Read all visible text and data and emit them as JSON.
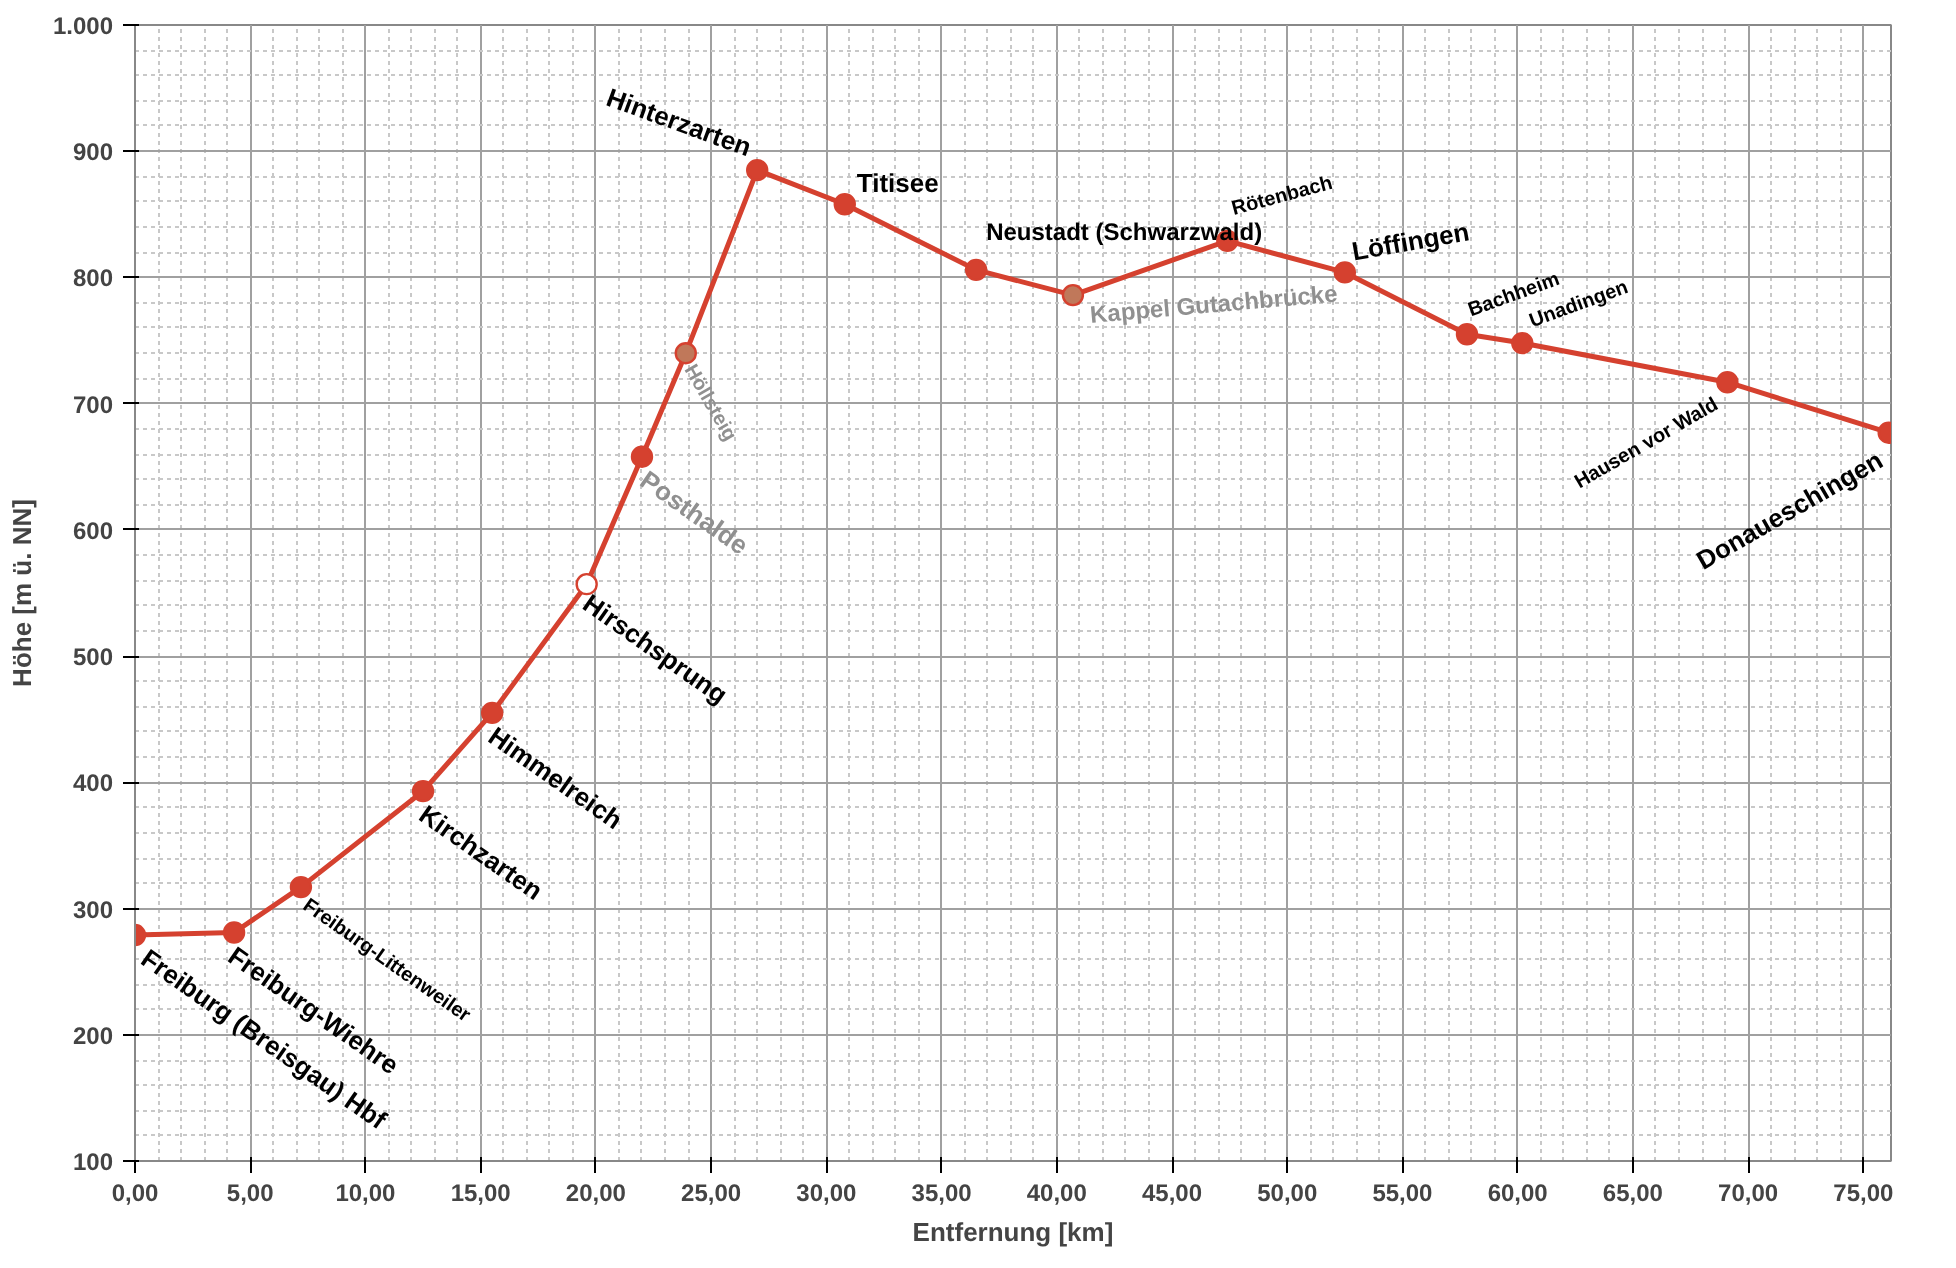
{
  "chart_data": {
    "type": "line",
    "xlabel": "Entfernung [km]",
    "ylabel": "Höhe [m ü. NN]",
    "x": [
      0.0,
      4.3,
      7.2,
      12.5,
      15.5,
      19.6,
      22.0,
      23.9,
      27.0,
      30.8,
      36.5,
      40.7,
      47.4,
      52.5,
      57.8,
      60.2,
      69.1,
      76.1
    ],
    "series": [
      {
        "color": "#d5412f",
        "values": [
          279,
          281,
          317,
          393,
          455,
          557,
          658,
          740,
          885,
          858,
          806,
          786,
          829,
          804,
          755,
          748,
          717,
          677
        ],
        "colors": [
          "#d5412f",
          "#d5412f",
          "#d5412f",
          "#d5412f",
          "#d5412f",
          "#ffffff",
          "#d5412f",
          "#c0785a",
          "#d5412f",
          "#d5412f",
          "#d5412f",
          "#c0785a",
          "#d5412f",
          "#d5412f",
          "#d5412f",
          "#d5412f",
          "#d5412f",
          "#d5412f"
        ]
      }
    ],
    "xlim": [
      0,
      76.2
    ],
    "ylim": [
      100,
      1000
    ],
    "xticks": [
      {
        "value": 0,
        "label": "0,00"
      },
      {
        "value": 5,
        "label": "5,00"
      },
      {
        "value": 10,
        "label": "10,00"
      },
      {
        "value": 15,
        "label": "15,00"
      },
      {
        "value": 20,
        "label": "20,00"
      },
      {
        "value": 25,
        "label": "25,00"
      },
      {
        "value": 30,
        "label": "30,00"
      },
      {
        "value": 35,
        "label": "35,00"
      },
      {
        "value": 40,
        "label": "40,00"
      },
      {
        "value": 45,
        "label": "45,00"
      },
      {
        "value": 50,
        "label": "50,00"
      },
      {
        "value": 55,
        "label": "55,00"
      },
      {
        "value": 60,
        "label": "60,00"
      },
      {
        "value": 65,
        "label": "65,00"
      },
      {
        "value": 70,
        "label": "70,00"
      },
      {
        "value": 75,
        "label": "75,00"
      }
    ],
    "yticks": [
      100,
      200,
      300,
      400,
      500,
      600,
      700,
      800,
      900,
      {
        "value": 1000,
        "label": "1.000"
      }
    ],
    "grid": true,
    "marker": "circle",
    "line_style": "solid",
    "annotations": [
      {
        "text": "Freiburg (Breisgau) Hbf",
        "x": 0.0,
        "y": 279
      },
      {
        "text": "Freiburg-Wiehre",
        "x": 4.3,
        "y": 281
      },
      {
        "text": "Freiburg-Littenweiler",
        "x": 7.2,
        "y": 317
      },
      {
        "text": "Kirchzarten",
        "x": 12.5,
        "y": 393
      },
      {
        "text": "Himmelreich",
        "x": 15.5,
        "y": 455
      },
      {
        "text": "Hirschsprung",
        "x": 19.6,
        "y": 557
      },
      {
        "text": "Posthalde",
        "x": 22.0,
        "y": 658
      },
      {
        "text": "Höllsteig",
        "x": 23.9,
        "y": 740
      },
      {
        "text": "Hinterzarten",
        "x": 27.0,
        "y": 885
      },
      {
        "text": "Titisee",
        "x": 30.8,
        "y": 858
      },
      {
        "text": "Neustadt (Schwarzwald)",
        "x": 36.5,
        "y": 806
      },
      {
        "text": "Kappel Gutachbrücke",
        "x": 40.7,
        "y": 786
      },
      {
        "text": "Rötenbach",
        "x": 47.4,
        "y": 829
      },
      {
        "text": "Löffingen",
        "x": 52.5,
        "y": 804
      },
      {
        "text": "Bachheim",
        "x": 57.8,
        "y": 755
      },
      {
        "text": "Unadingen",
        "x": 60.2,
        "y": 748
      },
      {
        "text": "Hausen vor Wald",
        "x": 69.1,
        "y": 717
      },
      {
        "text": "Donaueschingen",
        "x": 76.1,
        "y": 677
      }
    ]
  }
}
